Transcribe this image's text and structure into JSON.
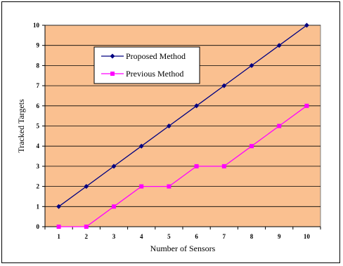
{
  "chart_data": {
    "type": "line",
    "title": "",
    "xlabel": "Number of Sensors",
    "ylabel": "Tracked Targets",
    "categories": [
      "1",
      "2",
      "3",
      "4",
      "5",
      "6",
      "7",
      "8",
      "9",
      "10"
    ],
    "ylim": [
      0,
      10
    ],
    "yticks": [
      "0",
      "1",
      "2",
      "3",
      "4",
      "5",
      "6",
      "7",
      "8",
      "9",
      "10"
    ],
    "grid": true,
    "legend_position": "top-left",
    "plot_background": "#FAC090",
    "series": [
      {
        "name": "Proposed Method",
        "color": "#000080",
        "marker": "diamond",
        "values": [
          1,
          2,
          3,
          4,
          5,
          6,
          7,
          8,
          9,
          10
        ]
      },
      {
        "name": "Previous Method",
        "color": "#FF00FF",
        "marker": "square",
        "values": [
          0,
          0,
          1,
          2,
          2,
          3,
          3,
          4,
          5,
          6
        ]
      }
    ]
  }
}
